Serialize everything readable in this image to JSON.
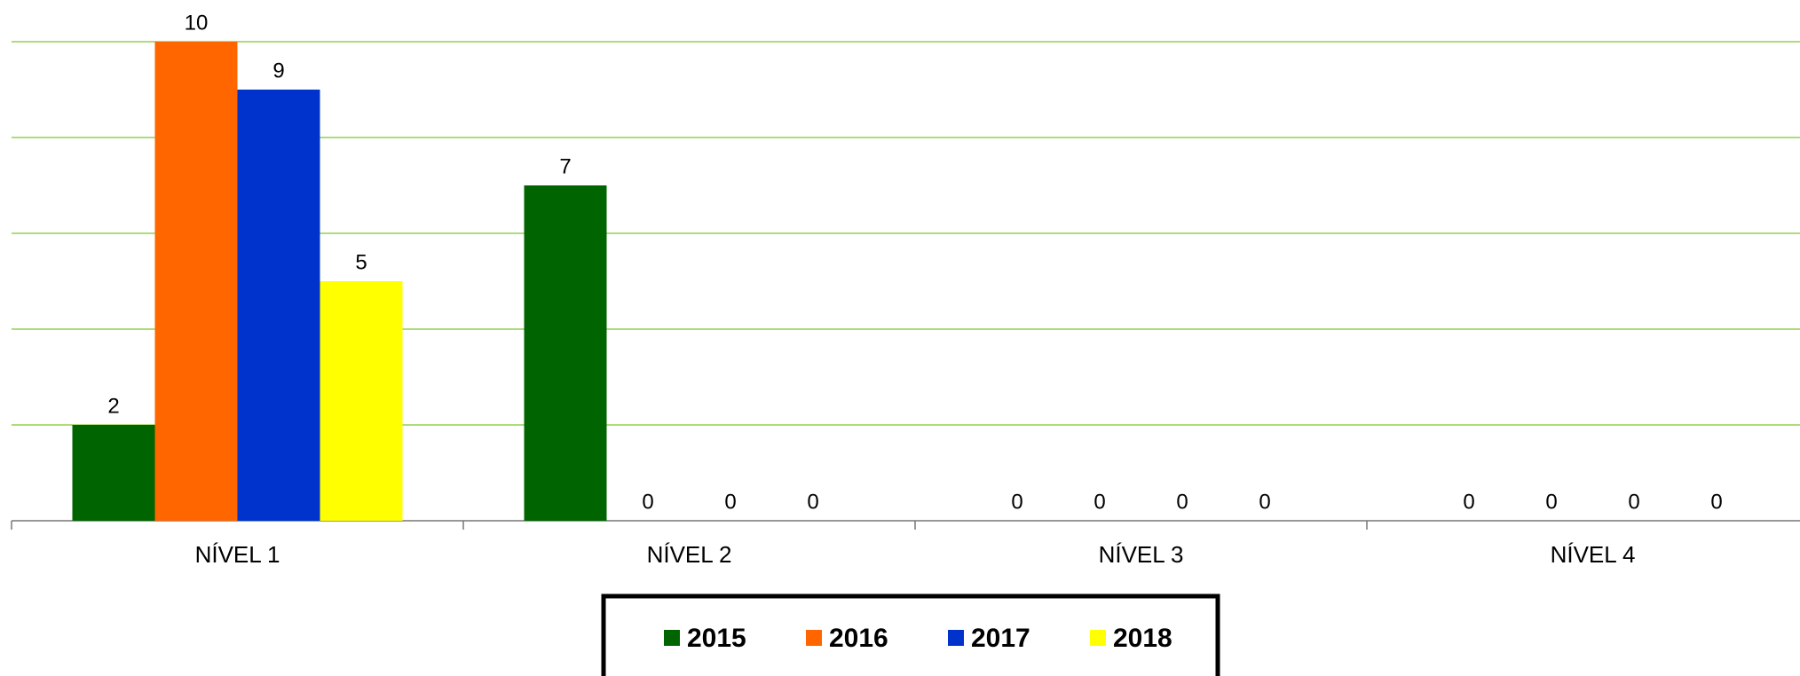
{
  "chart_data": {
    "type": "bar",
    "categories": [
      "NÍVEL 1",
      "NÍVEL 2",
      "NÍVEL 3",
      "NÍVEL 4"
    ],
    "series": [
      {
        "name": "2015",
        "color": "#006400",
        "values": [
          2,
          7,
          0,
          0
        ]
      },
      {
        "name": "2016",
        "color": "#ff6600",
        "values": [
          10,
          0,
          0,
          0
        ]
      },
      {
        "name": "2017",
        "color": "#0033cc",
        "values": [
          9,
          0,
          0,
          0
        ]
      },
      {
        "name": "2018",
        "color": "#ffff00",
        "values": [
          5,
          0,
          0,
          0
        ]
      }
    ],
    "ylim": [
      0,
      10
    ],
    "yticks": [
      0,
      2,
      4,
      6,
      8,
      10
    ],
    "grid": true,
    "grid_color": "#92d050",
    "legend": "bottom"
  }
}
